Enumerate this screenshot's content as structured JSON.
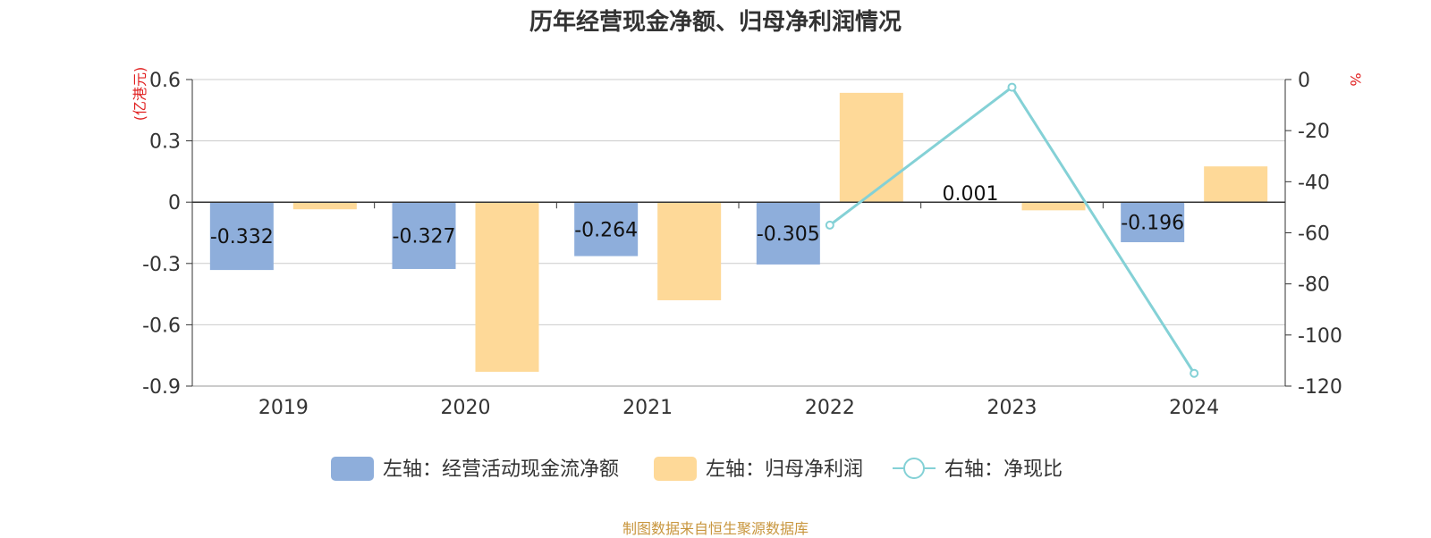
{
  "title": "历年经营现金净额、归母净利润情况",
  "source_note": "制图数据来自恒生聚源数据库",
  "colors": {
    "cash_bar": "#8eaedb",
    "profit_bar": "#fed998",
    "ratio_line": "#84d1d6",
    "unit_text": "#e02020",
    "axis": "#333333",
    "grid": "#cccccc"
  },
  "chart_data": {
    "type": "bar",
    "categories": [
      "2019",
      "2020",
      "2021",
      "2022",
      "2023",
      "2024"
    ],
    "left_axis": {
      "unit": "(亿港元)",
      "ylim": [
        -0.9,
        0.6
      ],
      "ticks": [
        0.6,
        0.3,
        0,
        -0.3,
        -0.6,
        -0.9
      ],
      "tick_labels": [
        "0.6",
        "0.3",
        "0",
        "-0.3",
        "-0.6",
        "-0.9"
      ]
    },
    "right_axis": {
      "unit": "%",
      "ylim": [
        -120,
        0
      ],
      "ticks": [
        0,
        -20,
        -40,
        -60,
        -80,
        -100,
        -120
      ],
      "tick_labels": [
        "0",
        "-20",
        "-40",
        "-60",
        "-80",
        "-100",
        "-120"
      ]
    },
    "grid": true,
    "legend_position": "bottom",
    "series": [
      {
        "name": "左轴：经营活动现金流净额",
        "type": "bar",
        "axis": "left",
        "values": [
          -0.332,
          -0.327,
          -0.264,
          -0.305,
          0.001,
          -0.196
        ],
        "labels": [
          "-0.332",
          "-0.327",
          "-0.264",
          "-0.305",
          "0.001",
          "-0.196"
        ]
      },
      {
        "name": "左轴：归母净利润",
        "type": "bar",
        "axis": "left",
        "values": [
          -0.035,
          -0.83,
          -0.48,
          0.535,
          -0.04,
          0.175
        ]
      },
      {
        "name": "右轴：净现比",
        "type": "line",
        "axis": "right",
        "values": [
          null,
          null,
          null,
          -57,
          -3,
          -115
        ]
      }
    ]
  }
}
